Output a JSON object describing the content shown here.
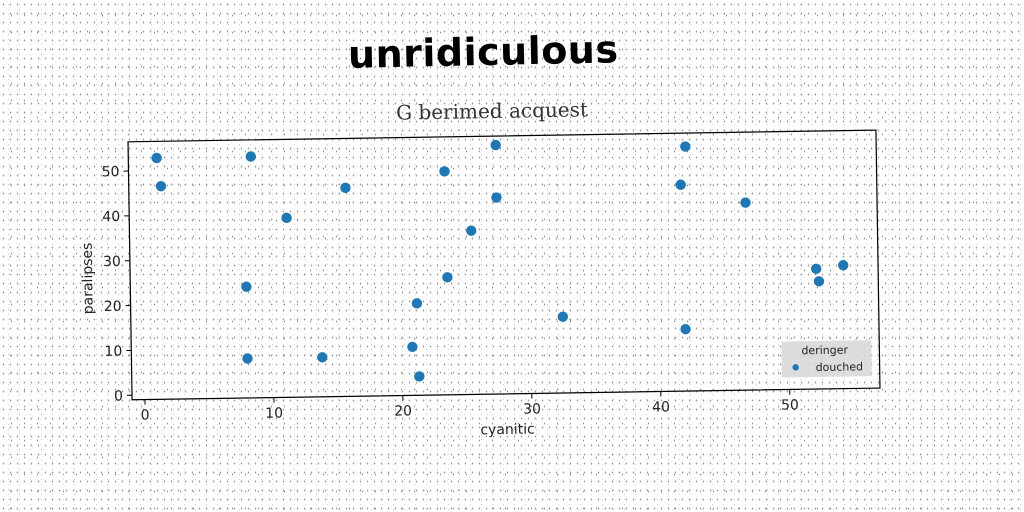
{
  "title": "unridiculous",
  "chart_data": {
    "type": "scatter",
    "title": "G berimed acquest",
    "xlabel": "cyanitic",
    "ylabel": "paralipses",
    "xlim": [
      -1,
      57
    ],
    "ylim": [
      -1,
      56.5
    ],
    "xticks": [
      0,
      10,
      20,
      30,
      40,
      50
    ],
    "yticks": [
      0,
      10,
      20,
      30,
      40,
      50
    ],
    "grid": false,
    "legend_position": "lower-right",
    "legend_title": "deringer",
    "series": [
      {
        "name": "douched",
        "color": "#1f77b4",
        "points": [
          {
            "x": 1.2,
            "y": 52.8
          },
          {
            "x": 1.5,
            "y": 46.5
          },
          {
            "x": 8.5,
            "y": 52.8
          },
          {
            "x": 11.2,
            "y": 39.0
          },
          {
            "x": 15.8,
            "y": 45.5
          },
          {
            "x": 8.0,
            "y": 23.8
          },
          {
            "x": 8.0,
            "y": 7.8
          },
          {
            "x": 13.8,
            "y": 7.8
          },
          {
            "x": 20.8,
            "y": 9.8
          },
          {
            "x": 21.2,
            "y": 19.5
          },
          {
            "x": 21.3,
            "y": 3.2
          },
          {
            "x": 23.5,
            "y": 48.8
          },
          {
            "x": 23.6,
            "y": 25.2
          },
          {
            "x": 25.5,
            "y": 35.5
          },
          {
            "x": 27.5,
            "y": 54.5
          },
          {
            "x": 27.5,
            "y": 42.8
          },
          {
            "x": 32.5,
            "y": 16.0
          },
          {
            "x": 41.8,
            "y": 45.0
          },
          {
            "x": 42.2,
            "y": 53.5
          },
          {
            "x": 42.0,
            "y": 12.8
          },
          {
            "x": 46.8,
            "y": 40.8
          },
          {
            "x": 52.2,
            "y": 25.8
          },
          {
            "x": 52.4,
            "y": 23.0
          },
          {
            "x": 54.3,
            "y": 26.5
          }
        ]
      }
    ]
  }
}
